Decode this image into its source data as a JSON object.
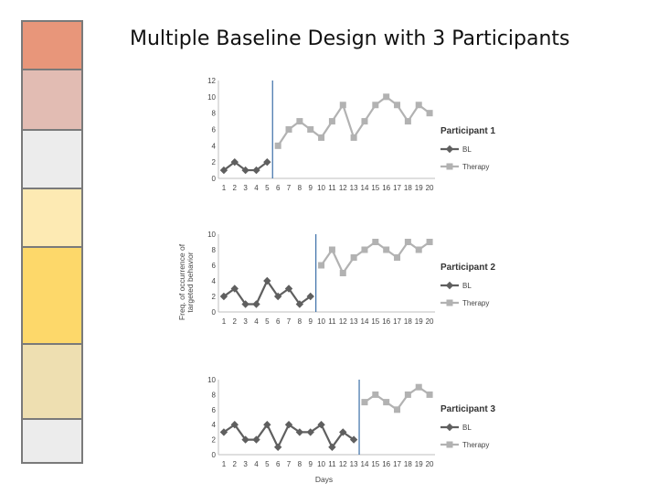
{
  "slide": {
    "title": "Multiple Baseline Design with 3 Participants"
  },
  "sidebar_colors": [
    "#e8967a",
    "#e2bcb3",
    "#ececec",
    "#fdeab3",
    "#fdd86a",
    "#eedfb1",
    "#ececec"
  ],
  "colors": {
    "bl": "#5f5f5f",
    "therapy": "#b2b2b2",
    "phase_line": "#3b6fa8",
    "axis": "#bfbfbf"
  },
  "chart_data": [
    {
      "type": "line",
      "title": "Participant 1",
      "xlabel": "",
      "ylabel": "",
      "x": [
        1,
        2,
        3,
        4,
        5,
        6,
        7,
        8,
        9,
        10,
        11,
        12,
        13,
        14,
        15,
        16,
        17,
        18,
        19,
        20
      ],
      "ylim": [
        0,
        12
      ],
      "yticks": [
        0,
        2,
        4,
        6,
        8,
        10,
        12
      ],
      "phase_change_after": 5,
      "legend_position": "right",
      "series": [
        {
          "name": "BL",
          "x": [
            1,
            2,
            3,
            4,
            5
          ],
          "values": [
            1,
            2,
            1,
            1,
            2
          ],
          "marker": "diamond",
          "color": "#5f5f5f"
        },
        {
          "name": "Therapy",
          "x": [
            6,
            7,
            8,
            9,
            10,
            11,
            12,
            13,
            14,
            15,
            16,
            17,
            18,
            19,
            20
          ],
          "values": [
            4,
            6,
            7,
            6,
            5,
            7,
            9,
            5,
            7,
            9,
            10,
            9,
            7,
            9,
            8
          ],
          "marker": "square",
          "color": "#b2b2b2"
        }
      ]
    },
    {
      "type": "line",
      "title": "Participant 2",
      "xlabel": "",
      "ylabel": "Freq. of occurrence of targeted behavior",
      "x": [
        1,
        2,
        3,
        4,
        5,
        6,
        7,
        8,
        9,
        10,
        11,
        12,
        13,
        14,
        15,
        16,
        17,
        18,
        19,
        20
      ],
      "ylim": [
        0,
        10
      ],
      "yticks": [
        0,
        2,
        4,
        6,
        8,
        10
      ],
      "phase_change_after": 9,
      "legend_position": "right",
      "series": [
        {
          "name": "BL",
          "x": [
            1,
            2,
            3,
            4,
            5,
            6,
            7,
            8,
            9
          ],
          "values": [
            2,
            3,
            1,
            1,
            4,
            2,
            3,
            1,
            2
          ],
          "marker": "diamond",
          "color": "#5f5f5f"
        },
        {
          "name": "Therapy",
          "x": [
            10,
            11,
            12,
            13,
            14,
            15,
            16,
            17,
            18,
            19,
            20
          ],
          "values": [
            6,
            8,
            5,
            7,
            8,
            9,
            8,
            7,
            9,
            8,
            9
          ],
          "marker": "square",
          "color": "#b2b2b2"
        }
      ]
    },
    {
      "type": "line",
      "title": "Participant 3",
      "xlabel": "Days",
      "ylabel": "",
      "x": [
        1,
        2,
        3,
        4,
        5,
        6,
        7,
        8,
        9,
        10,
        11,
        12,
        13,
        14,
        15,
        16,
        17,
        18,
        19,
        20
      ],
      "ylim": [
        0,
        10
      ],
      "yticks": [
        0,
        2,
        4,
        6,
        8,
        10
      ],
      "phase_change_after": 13,
      "legend_position": "right",
      "series": [
        {
          "name": "BL",
          "x": [
            1,
            2,
            3,
            4,
            5,
            6,
            7,
            8,
            9,
            10,
            11,
            12,
            13
          ],
          "values": [
            3,
            4,
            2,
            2,
            4,
            1,
            4,
            3,
            3,
            4,
            1,
            3,
            2
          ],
          "marker": "diamond",
          "color": "#5f5f5f"
        },
        {
          "name": "Therapy",
          "x": [
            14,
            15,
            16,
            17,
            18,
            19,
            20
          ],
          "values": [
            7,
            8,
            7,
            6,
            8,
            9,
            8
          ],
          "marker": "square",
          "color": "#b2b2b2"
        }
      ]
    }
  ]
}
